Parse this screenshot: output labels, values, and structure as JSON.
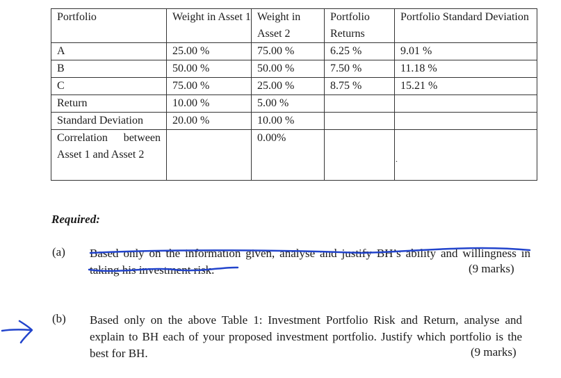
{
  "table": {
    "headers": [
      "Portfolio",
      "Weight in Asset 1",
      "Weight in Asset 2",
      "Portfolio Returns",
      "Portfolio Standard Deviation"
    ],
    "rows": [
      [
        "A",
        "25.00 %",
        "75.00 %",
        "6.25 %",
        "9.01 %"
      ],
      [
        "B",
        "50.00 %",
        "50.00 %",
        "7.50 %",
        "11.18 %"
      ],
      [
        "C",
        "75.00 %",
        "25.00 %",
        "8.75 %",
        "15.21 %"
      ],
      [
        "Return",
        "10.00 %",
        "5.00 %",
        "",
        ""
      ],
      [
        "Standard Deviation",
        "20.00 %",
        "10.00 %",
        "",
        ""
      ],
      [
        "Correlation between Asset 1 and Asset 2",
        "",
        "0.00%",
        "",
        ""
      ]
    ],
    "stray_mark": "."
  },
  "required_heading": "Required:",
  "questions": [
    {
      "label": "(a)",
      "text": "Based only on the information given, analyse and justify BH’s ability and willingness in taking his investment risk.",
      "marks": "(9 marks)",
      "struck_through": true
    },
    {
      "label": "(b)",
      "text": "Based only on the above Table 1: Investment Portfolio Risk and Return, analyse and explain to BH each of your proposed investment portfolio. Justify which portfolio is the best for BH.",
      "marks": "(9 marks)",
      "struck_through": false
    }
  ],
  "annotations": {
    "pen_color": "#2244cc",
    "arrow_points_to": "(b)"
  }
}
